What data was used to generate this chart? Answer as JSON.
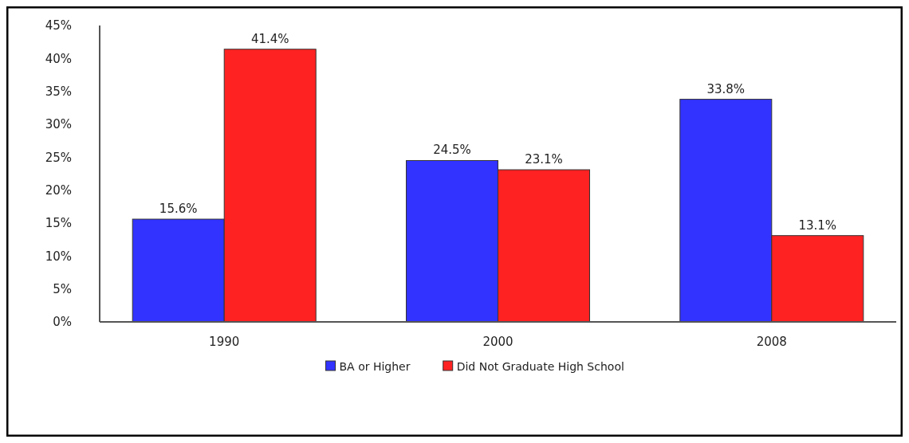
{
  "chart_data": {
    "type": "bar",
    "categories": [
      "1990",
      "2000",
      "2008"
    ],
    "series": [
      {
        "name": "BA or Higher",
        "color": "#3333ff",
        "values": [
          15.6,
          24.5,
          33.8
        ],
        "value_labels": [
          "15.6%",
          "24.5%",
          "33.8%"
        ]
      },
      {
        "name": "Did Not Graduate High School",
        "color": "#ff2222",
        "values": [
          41.4,
          23.1,
          13.1
        ],
        "value_labels": [
          "41.4%",
          "23.1%",
          "13.1%"
        ]
      }
    ],
    "ylim": [
      0,
      45
    ],
    "yticks": [
      {
        "value": 0,
        "label": "0%"
      },
      {
        "value": 5,
        "label": "5%"
      },
      {
        "value": 10,
        "label": "10%"
      },
      {
        "value": 15,
        "label": "15%"
      },
      {
        "value": 20,
        "label": "20%"
      },
      {
        "value": 25,
        "label": "25%"
      },
      {
        "value": 30,
        "label": "30%"
      },
      {
        "value": 35,
        "label": "35%"
      },
      {
        "value": 40,
        "label": "40%"
      },
      {
        "value": 45,
        "label": "45%"
      }
    ],
    "grid": false,
    "legend": "bottom"
  }
}
